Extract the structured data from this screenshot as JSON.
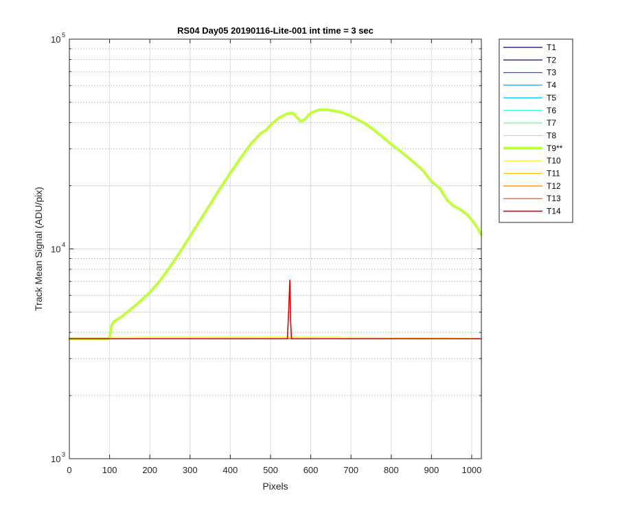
{
  "chart_data": {
    "type": "line",
    "title": "RS04 Day05 20190116-Lite-001 int time = 3 sec",
    "xlabel": "Pixels",
    "ylabel": "Track Mean Signal (ADU/pix)",
    "xlim": [
      0,
      1024
    ],
    "ylim": [
      1000,
      100000
    ],
    "yscale": "log",
    "grid": true,
    "minor_grid": true,
    "legend_position": "outside-right-top",
    "x_ticks": [
      "0",
      "100",
      "200",
      "300",
      "400",
      "500",
      "600",
      "700",
      "800",
      "900",
      "1000"
    ],
    "y_ticks": [
      {
        "base": "10",
        "exp": "3"
      },
      {
        "base": "10",
        "exp": "4"
      },
      {
        "base": "10",
        "exp": "5"
      }
    ],
    "series": [
      {
        "name": "T1",
        "color": "#00008f",
        "width": 1.2,
        "points": [
          [
            0,
            3730
          ],
          [
            1024,
            3730
          ]
        ]
      },
      {
        "name": "T2",
        "color": "#0000ee",
        "width": 1.2,
        "points": [
          [
            0,
            3730
          ],
          [
            1024,
            3730
          ]
        ]
      },
      {
        "name": "T3",
        "color": "#0040ff",
        "width": 1.2,
        "points": [
          [
            0,
            3730
          ],
          [
            1024,
            3730
          ]
        ]
      },
      {
        "name": "T4",
        "color": "#0090ff",
        "width": 1.2,
        "points": [
          [
            0,
            3730
          ],
          [
            1024,
            3730
          ]
        ]
      },
      {
        "name": "T5",
        "color": "#00d0ff",
        "width": 1.2,
        "points": [
          [
            0,
            3730
          ],
          [
            1024,
            3730
          ]
        ]
      },
      {
        "name": "T6",
        "color": "#20ffdf",
        "width": 1.2,
        "points": [
          [
            0,
            3730
          ],
          [
            1024,
            3730
          ]
        ]
      },
      {
        "name": "T7",
        "color": "#60ffa0",
        "width": 1.2,
        "points": [
          [
            0,
            3730
          ],
          [
            1024,
            3730
          ]
        ]
      },
      {
        "name": "T8",
        "color": "#90ff70",
        "width": 1.2,
        "points": [
          [
            0,
            3730
          ],
          [
            1024,
            3730
          ]
        ]
      },
      {
        "name": "T9**",
        "color": "#bfff40",
        "width": 4,
        "points": [
          [
            0,
            3730
          ],
          [
            95,
            3730
          ],
          [
            100,
            3800
          ],
          [
            105,
            4300
          ],
          [
            110,
            4500
          ],
          [
            130,
            4750
          ],
          [
            150,
            5100
          ],
          [
            175,
            5600
          ],
          [
            200,
            6200
          ],
          [
            225,
            7050
          ],
          [
            250,
            8200
          ],
          [
            275,
            9650
          ],
          [
            300,
            11500
          ],
          [
            325,
            13700
          ],
          [
            350,
            16300
          ],
          [
            375,
            19500
          ],
          [
            400,
            23000
          ],
          [
            425,
            27000
          ],
          [
            450,
            31500
          ],
          [
            475,
            35500
          ],
          [
            490,
            37000
          ],
          [
            500,
            39000
          ],
          [
            520,
            42000
          ],
          [
            540,
            44000
          ],
          [
            555,
            44500
          ],
          [
            565,
            42500
          ],
          [
            575,
            40500
          ],
          [
            585,
            41500
          ],
          [
            600,
            44500
          ],
          [
            620,
            46000
          ],
          [
            640,
            46000
          ],
          [
            660,
            45500
          ],
          [
            680,
            44500
          ],
          [
            700,
            43000
          ],
          [
            720,
            41000
          ],
          [
            740,
            39000
          ],
          [
            760,
            36500
          ],
          [
            780,
            34000
          ],
          [
            800,
            31500
          ],
          [
            820,
            29500
          ],
          [
            840,
            27500
          ],
          [
            860,
            25500
          ],
          [
            880,
            23500
          ],
          [
            900,
            21000
          ],
          [
            920,
            19500
          ],
          [
            940,
            17000
          ],
          [
            955,
            16000
          ],
          [
            970,
            15500
          ],
          [
            990,
            14500
          ],
          [
            1010,
            13000
          ],
          [
            1024,
            11700
          ]
        ]
      },
      {
        "name": "T10",
        "color": "#ffff00",
        "width": 1.2,
        "points": [
          [
            0,
            3730
          ],
          [
            100,
            3730
          ],
          [
            105,
            3790
          ],
          [
            500,
            3800
          ],
          [
            700,
            3790
          ],
          [
            1024,
            3740
          ]
        ]
      },
      {
        "name": "T11",
        "color": "#ffc000",
        "width": 1.2,
        "points": [
          [
            0,
            3730
          ],
          [
            1024,
            3730
          ]
        ]
      },
      {
        "name": "T12",
        "color": "#ff8000",
        "width": 1.2,
        "points": [
          [
            0,
            3730
          ],
          [
            1024,
            3730
          ]
        ]
      },
      {
        "name": "T13",
        "color": "#ff4000",
        "width": 1.2,
        "points": [
          [
            0,
            3730
          ],
          [
            1024,
            3730
          ]
        ]
      },
      {
        "name": "T14",
        "color": "#e00000",
        "width": 1.6,
        "points": [
          [
            0,
            3730
          ],
          [
            542,
            3730
          ],
          [
            545,
            5000
          ],
          [
            548,
            7100
          ],
          [
            550,
            4500
          ],
          [
            552,
            3730
          ],
          [
            1024,
            3730
          ]
        ]
      }
    ]
  }
}
